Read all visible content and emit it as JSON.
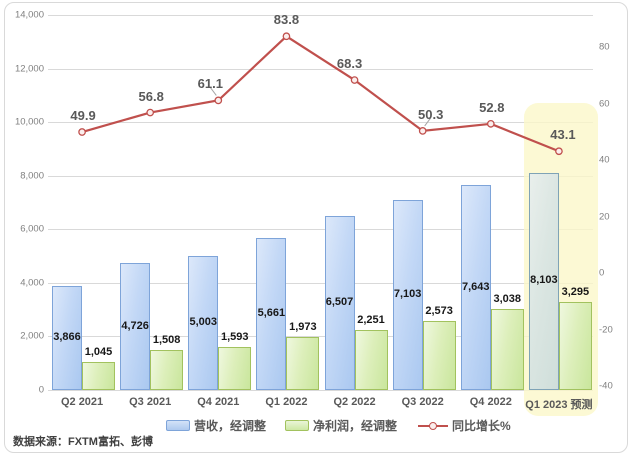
{
  "chart_data": {
    "type": "combo_bar_line",
    "categories": [
      "Q2 2021",
      "Q3 2021",
      "Q4 2021",
      "Q1 2022",
      "Q2 2022",
      "Q3 2022",
      "Q4 2022",
      "Q1 2023 预测"
    ],
    "series": [
      {
        "name": "营收，经调整",
        "type": "bar",
        "axis": "left",
        "color": "#aec9ef",
        "border_color": "#7ea4d9",
        "values": [
          3866,
          4726,
          5003,
          5661,
          6507,
          7103,
          7643,
          8103
        ],
        "labels": [
          "3,866",
          "4,726",
          "5,003",
          "5,661",
          "6,507",
          "7,103",
          "7,643",
          "8,103"
        ]
      },
      {
        "name": "净利润，经调整",
        "type": "bar",
        "axis": "left",
        "color": "#cde8a4",
        "border_color": "#a2c25e",
        "values": [
          1045,
          1508,
          1593,
          1973,
          2251,
          2573,
          3038,
          3295
        ],
        "labels": [
          "1,045",
          "1,508",
          "1,593",
          "1,973",
          "2,251",
          "2,573",
          "3,038",
          "3,295"
        ]
      },
      {
        "name": "同比增长%",
        "type": "line",
        "axis": "right",
        "color": "#c0504d",
        "values": [
          49.9,
          56.8,
          61.1,
          83.8,
          68.3,
          50.3,
          52.8,
          43.1
        ],
        "labels": [
          "49.9",
          "56.8",
          "61.1",
          "83.8",
          "68.3",
          "50.3",
          "52.8",
          "43.1"
        ]
      }
    ],
    "left_axis": {
      "min": 0,
      "max": 14000,
      "step": 2000,
      "tick_labels": [
        "0",
        "2,000",
        "4,000",
        "6,000",
        "8,000",
        "10,000",
        "12,000",
        "14,000"
      ]
    },
    "right_axis": {
      "min": -40,
      "max": 80,
      "step": 20,
      "tick_labels": [
        "-40",
        "-20",
        "0",
        "20",
        "40",
        "60",
        "80"
      ]
    },
    "highlight": {
      "category_index": 7,
      "label": "Q1 2023 预测",
      "color": "#fbf7c8"
    },
    "grid": "horizontal",
    "legend_position": "bottom"
  },
  "source_note": "数据来源：FXTM富拓、彭博",
  "colors": {
    "gridline": "#d9d9d9",
    "frame_border": "#d9d9d9",
    "line_series": "#c0504d",
    "highlight_band": "#fbf7c8",
    "axis_text": "#7f7f7f",
    "label_text": "#595959"
  }
}
